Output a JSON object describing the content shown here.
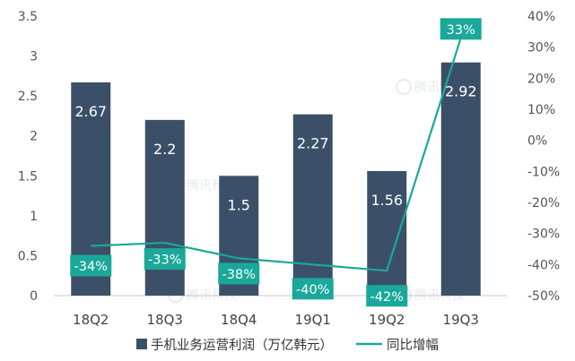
{
  "chart_data": {
    "type": "bar",
    "categories": [
      "18Q2",
      "18Q3",
      "18Q4",
      "19Q1",
      "19Q2",
      "19Q3"
    ],
    "series": [
      {
        "name": "手机业务运营利润（万亿韩元）",
        "type": "bar",
        "axis": "left",
        "values": [
          2.67,
          2.2,
          1.5,
          2.27,
          1.56,
          2.92
        ],
        "labels": [
          "2.67",
          "2.2",
          "1.5",
          "2.27",
          "1.56",
          "2.92"
        ],
        "color": "#3b5068"
      },
      {
        "name": "同比增幅",
        "type": "line",
        "axis": "right",
        "values": [
          -34,
          -33,
          -38,
          -40,
          -42,
          33
        ],
        "labels": [
          "-34%",
          "-33%",
          "-38%",
          "-40%",
          "-42%",
          "33%"
        ],
        "color": "#1aa89a"
      }
    ],
    "y_left": {
      "min": 0,
      "max": 3.5,
      "ticks": [
        "0",
        "0.5",
        "1",
        "1.5",
        "2",
        "2.5",
        "3",
        "3.5"
      ]
    },
    "y_right": {
      "min": -50,
      "max": 40,
      "ticks": [
        "-50%",
        "-40%",
        "-30%",
        "-20%",
        "-10%",
        "0%",
        "10%",
        "20%",
        "30%",
        "40%"
      ]
    },
    "legend_position": "bottom",
    "grid": false,
    "watermark": "腾讯科技"
  }
}
